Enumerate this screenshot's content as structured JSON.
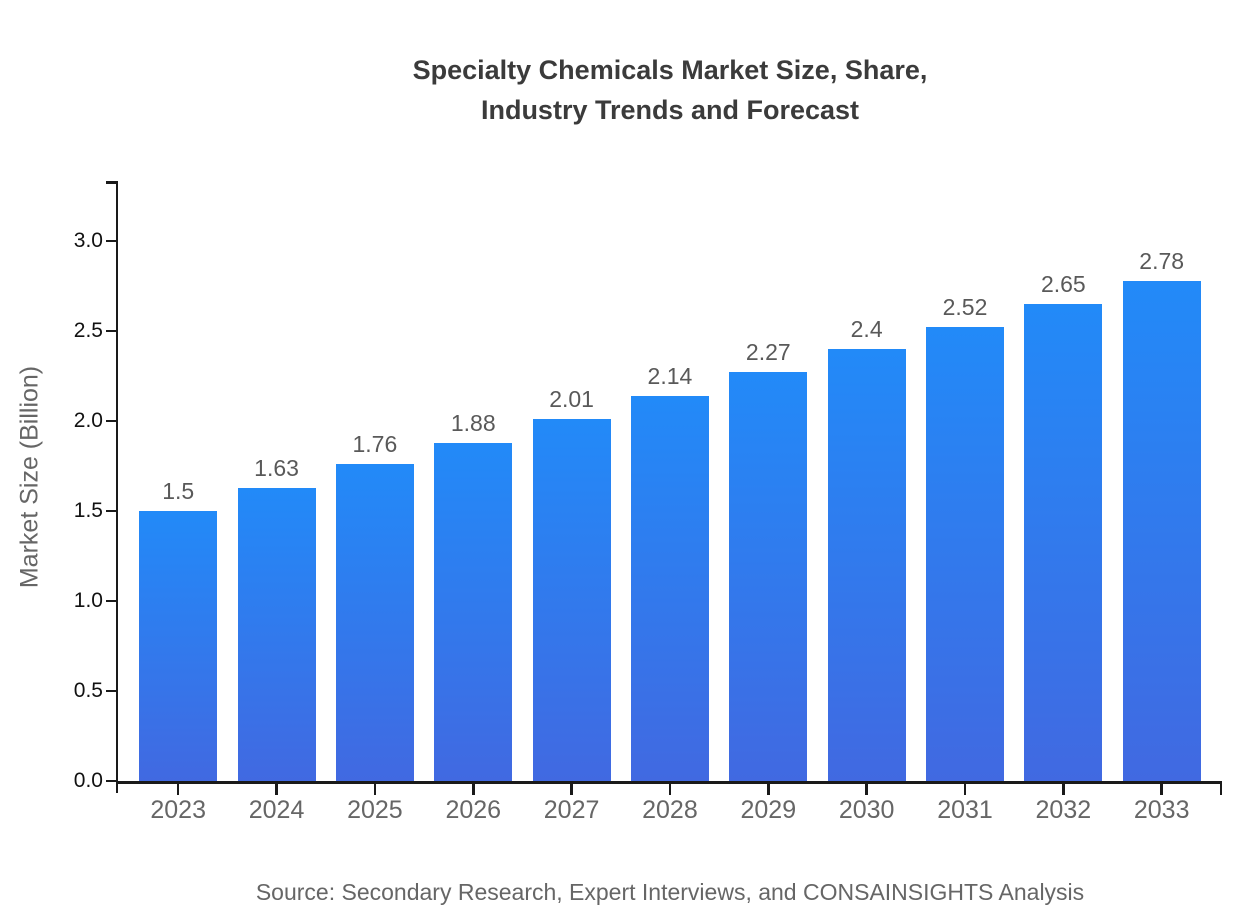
{
  "title": {
    "line1": "Specialty Chemicals Market Size, Share,",
    "line2": "Industry Trends and Forecast"
  },
  "source_note": "Source: Secondary Research, Expert Interviews, and CONSAINSIGHTS Analysis",
  "chart_data": {
    "type": "bar",
    "title": "Specialty Chemicals Market Size, Share, Industry Trends and Forecast",
    "xlabel": "",
    "ylabel": "Market Size (Billion)",
    "categories": [
      "2023",
      "2024",
      "2025",
      "2026",
      "2027",
      "2028",
      "2029",
      "2030",
      "2031",
      "2032",
      "2033"
    ],
    "values": [
      1.5,
      1.63,
      1.76,
      1.88,
      2.01,
      2.14,
      2.27,
      2.4,
      2.52,
      2.65,
      2.78
    ],
    "value_labels": [
      "1.5",
      "1.63",
      "1.76",
      "1.88",
      "2.01",
      "2.14",
      "2.27",
      "2.4",
      "2.52",
      "2.65",
      "2.78"
    ],
    "ylim": [
      0,
      3.33
    ],
    "yticks": [
      0.0,
      0.5,
      1.0,
      1.5,
      2.0,
      2.5,
      3.0
    ],
    "ytick_labels": [
      "0.0",
      "0.5",
      "1.0",
      "1.5",
      "2.0",
      "2.5",
      "3.0"
    ],
    "grid": false,
    "legend": false,
    "colors": {
      "bar_gradient_top": "#228af8",
      "bar_gradient_bottom": "#4169e1",
      "axis": "#1a1a1a",
      "value_label": "#595959",
      "x_tick_label": "#666666",
      "y_tick_label": "#111111",
      "title": "#3b3b3b",
      "source": "#666666"
    }
  }
}
